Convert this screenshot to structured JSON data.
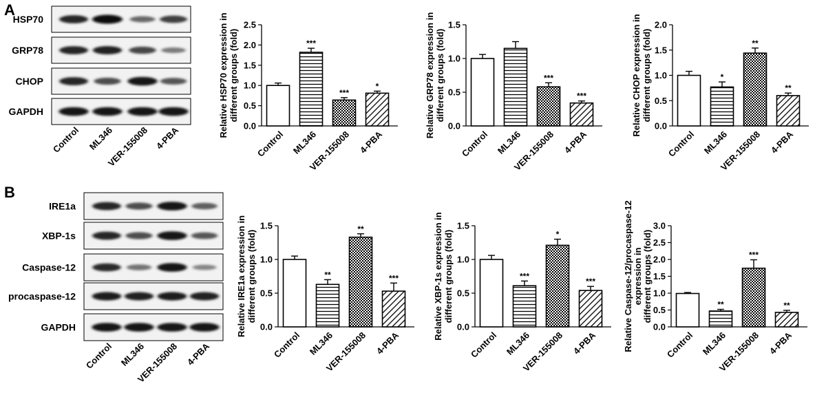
{
  "panels": [
    {
      "letter": "A",
      "blots": [
        {
          "label": "HSP70",
          "intensity": [
            0.85,
            1.0,
            0.5,
            0.72
          ]
        },
        {
          "label": "GRP78",
          "intensity": [
            0.85,
            0.88,
            0.68,
            0.4
          ]
        },
        {
          "label": "CHOP",
          "intensity": [
            0.85,
            0.65,
            0.95,
            0.6
          ]
        },
        {
          "label": "GAPDH",
          "intensity": [
            0.95,
            0.95,
            0.95,
            0.95
          ]
        }
      ],
      "lanes": [
        "Control",
        "ML346",
        "VER-155008",
        "4-PBA"
      ]
    },
    {
      "letter": "B",
      "blots": [
        {
          "label": "IRE1a",
          "intensity": [
            0.85,
            0.65,
            0.95,
            0.55
          ]
        },
        {
          "label": "XBP-1s",
          "intensity": [
            0.85,
            0.65,
            0.95,
            0.6
          ]
        },
        {
          "label": "Caspase-12",
          "intensity": [
            0.82,
            0.45,
            0.95,
            0.35
          ]
        },
        {
          "label": "procaspase-12",
          "intensity": [
            0.9,
            0.88,
            0.9,
            0.88
          ]
        },
        {
          "label": "GAPDH",
          "intensity": [
            0.95,
            0.95,
            0.95,
            0.95
          ]
        }
      ],
      "lanes": [
        "Control",
        "ML346",
        "VER-155008",
        "4-PBA"
      ]
    }
  ],
  "chart_data": [
    {
      "type": "bar",
      "ylabel": [
        "Relative HSP70 expression in",
        "different groups (fold)"
      ],
      "categories": [
        "Control",
        "ML346",
        "VER-155008",
        "4-PBA"
      ],
      "values": [
        1.0,
        1.82,
        0.64,
        0.81
      ],
      "errors": [
        0.06,
        0.1,
        0.06,
        0.05
      ],
      "significance": [
        "",
        "***",
        "***",
        "*"
      ],
      "ylim": [
        0,
        2.5
      ],
      "yticks": [
        "0.0",
        "0.5",
        "1.0",
        "1.5",
        "2.0",
        "2.5"
      ]
    },
    {
      "type": "bar",
      "ylabel": [
        "Relative GRP78 expression in",
        "different groups (fold)"
      ],
      "categories": [
        "Control",
        "ML346",
        "VER-155008",
        "4-PBA"
      ],
      "values": [
        1.0,
        1.15,
        0.58,
        0.34
      ],
      "errors": [
        0.06,
        0.1,
        0.06,
        0.03
      ],
      "significance": [
        "",
        "",
        "***",
        "***"
      ],
      "ylim": [
        0,
        1.5
      ],
      "yticks": [
        "0.0",
        "0.5",
        "1.0",
        "1.5"
      ]
    },
    {
      "type": "bar",
      "ylabel": [
        "Relative CHOP expression in",
        "different groups (fold)"
      ],
      "categories": [
        "Control",
        "ML346",
        "VER-155008",
        "4-PBA"
      ],
      "values": [
        1.0,
        0.77,
        1.44,
        0.6
      ],
      "errors": [
        0.08,
        0.1,
        0.1,
        0.05
      ],
      "significance": [
        "",
        "*",
        "**",
        "**"
      ],
      "ylim": [
        0,
        2.0
      ],
      "yticks": [
        "0.0",
        "0.5",
        "1.0",
        "1.5",
        "2.0"
      ]
    },
    {
      "type": "bar",
      "ylabel": [
        "Relative IRE1a expression in",
        "different groups (fold)"
      ],
      "categories": [
        "Control",
        "ML346",
        "VER-155008",
        "4-PBA"
      ],
      "values": [
        1.0,
        0.63,
        1.33,
        0.53
      ],
      "errors": [
        0.05,
        0.07,
        0.05,
        0.12
      ],
      "significance": [
        "",
        "**",
        "**",
        "***"
      ],
      "ylim": [
        0,
        1.5
      ],
      "yticks": [
        "0.0",
        "0.5",
        "1.0",
        "1.5"
      ]
    },
    {
      "type": "bar",
      "ylabel": [
        "Relative XBP-1s expression in",
        "different groups (fold)"
      ],
      "categories": [
        "Control",
        "ML346",
        "VER-155008",
        "4-PBA"
      ],
      "values": [
        1.0,
        0.61,
        1.21,
        0.54
      ],
      "errors": [
        0.06,
        0.07,
        0.09,
        0.06
      ],
      "significance": [
        "",
        "***",
        "*",
        "***"
      ],
      "ylim": [
        0,
        1.5
      ],
      "yticks": [
        "0.0",
        "0.5",
        "1.0",
        "1.5"
      ]
    },
    {
      "type": "bar",
      "ylabel": [
        "Relative Caspase-12/procaspase-12",
        "expression in",
        "different groups (fold)"
      ],
      "categories": [
        "Control",
        "ML346",
        "VER-155008",
        "4-PBA"
      ],
      "values": [
        0.99,
        0.47,
        1.74,
        0.43
      ],
      "errors": [
        0.03,
        0.05,
        0.25,
        0.06
      ],
      "significance": [
        "",
        "**",
        "***",
        "**"
      ],
      "ylim": [
        0,
        3.0
      ],
      "yticks": [
        "0.0",
        "0.5",
        "1.0",
        "1.5",
        "2.0",
        "2.5",
        "3.0"
      ]
    }
  ]
}
